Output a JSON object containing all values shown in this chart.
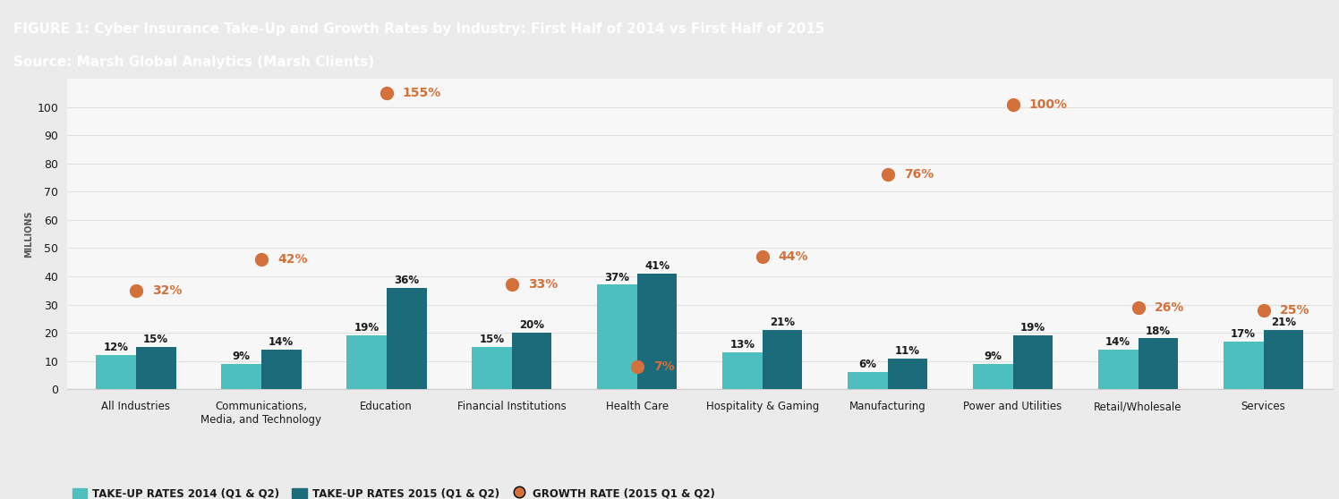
{
  "title_line1": "FIGURE 1: Cyber Insurance Take-Up and Growth Rates by Industry: First Half of 2014 vs First Half of 2015",
  "title_line2": "Source: Marsh Global Analytics (Marsh Clients)",
  "header_bg": "#2d3748",
  "header_text_color": "#ffffff",
  "figure_bg": "#ebebeb",
  "plot_bg": "#f7f7f7",
  "categories": [
    "All Industries",
    "Communications,\nMedia, and Technology",
    "Education",
    "Financial Institutions",
    "Health Care",
    "Hospitality & Gaming",
    "Manufacturing",
    "Power and Utilities",
    "Retail/Wholesale",
    "Services"
  ],
  "rates_2014": [
    12,
    9,
    19,
    15,
    37,
    13,
    6,
    9,
    14,
    17
  ],
  "rates_2015": [
    15,
    14,
    36,
    20,
    41,
    21,
    11,
    19,
    18,
    21
  ],
  "growth_rates": [
    32,
    42,
    155,
    33,
    7,
    44,
    76,
    100,
    26,
    25
  ],
  "growth_y_positions": [
    35,
    46,
    105,
    37,
    8,
    47,
    76,
    101,
    29,
    28
  ],
  "color_2014": "#4dbfbf",
  "color_2015": "#1b6b7b",
  "color_growth": "#d4703a",
  "ylabel": "MILLIONS",
  "ylim": [
    0,
    110
  ],
  "yticks": [
    0,
    10,
    20,
    30,
    40,
    50,
    60,
    70,
    80,
    90,
    100
  ],
  "bar_width": 0.32,
  "legend_labels": [
    "TAKE-UP RATES 2014 (Q1 & Q2)",
    "TAKE-UP RATES 2015 (Q1 & Q2)",
    "GROWTH RATE (2015 Q1 & Q2)"
  ],
  "growth_dot_size": 100,
  "annot_fontsize": 8.5,
  "growth_annot_fontsize": 10,
  "ylabel_fontsize": 7,
  "tick_fontsize": 9,
  "xtick_fontsize": 8.5,
  "legend_fontsize": 8.5,
  "grid_color": "#e0e0e0",
  "spine_color": "#cccccc",
  "label_color": "#1a1a1a"
}
